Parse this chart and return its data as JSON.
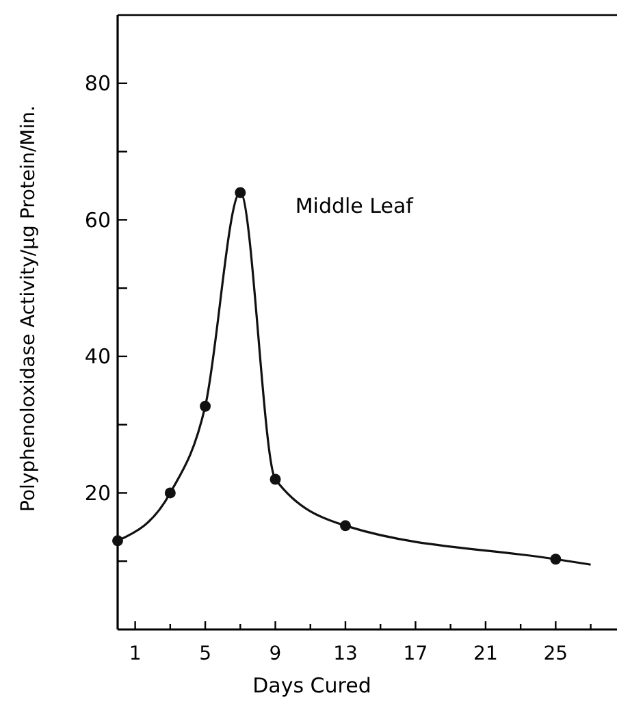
{
  "chart_data": {
    "type": "line",
    "xlabel": "Days Cured",
    "ylabel": "Polyphenoloxidase Activity/μg Protein/Min.",
    "annotations": [
      "Middle Leaf"
    ],
    "xlim": [
      0,
      28.5
    ],
    "xticks": [
      1,
      {
        "value": 3,
        "label": null
      },
      5,
      {
        "value": 7,
        "label": null
      },
      9,
      {
        "value": 11,
        "label": null
      },
      13,
      {
        "value": 15,
        "label": null
      },
      17,
      {
        "value": 19,
        "label": null
      },
      21,
      {
        "value": 23,
        "label": null
      },
      25,
      {
        "value": 27,
        "label": null
      }
    ],
    "ylim": [
      0,
      90
    ],
    "yticks": [
      {
        "value": 10,
        "label": null
      },
      20,
      {
        "value": 30,
        "label": null
      },
      40,
      {
        "value": 50,
        "label": null
      },
      60,
      {
        "value": 70,
        "label": null
      },
      80
    ],
    "grid": false,
    "series": [
      {
        "type": "line",
        "marker": "none",
        "color": "#111111",
        "x": [
          0,
          3,
          5,
          7,
          9,
          13,
          25,
          27
        ],
        "values": [
          13,
          20,
          32.7,
          64,
          22,
          15.2,
          10.3,
          9.5
        ]
      },
      {
        "type": "scatter",
        "marker": "circle",
        "color": "#111111",
        "x": [
          0,
          3,
          5,
          7,
          9,
          13,
          25
        ],
        "values": [
          13,
          20,
          32.7,
          64,
          22,
          15.2,
          10.3
        ]
      }
    ]
  }
}
